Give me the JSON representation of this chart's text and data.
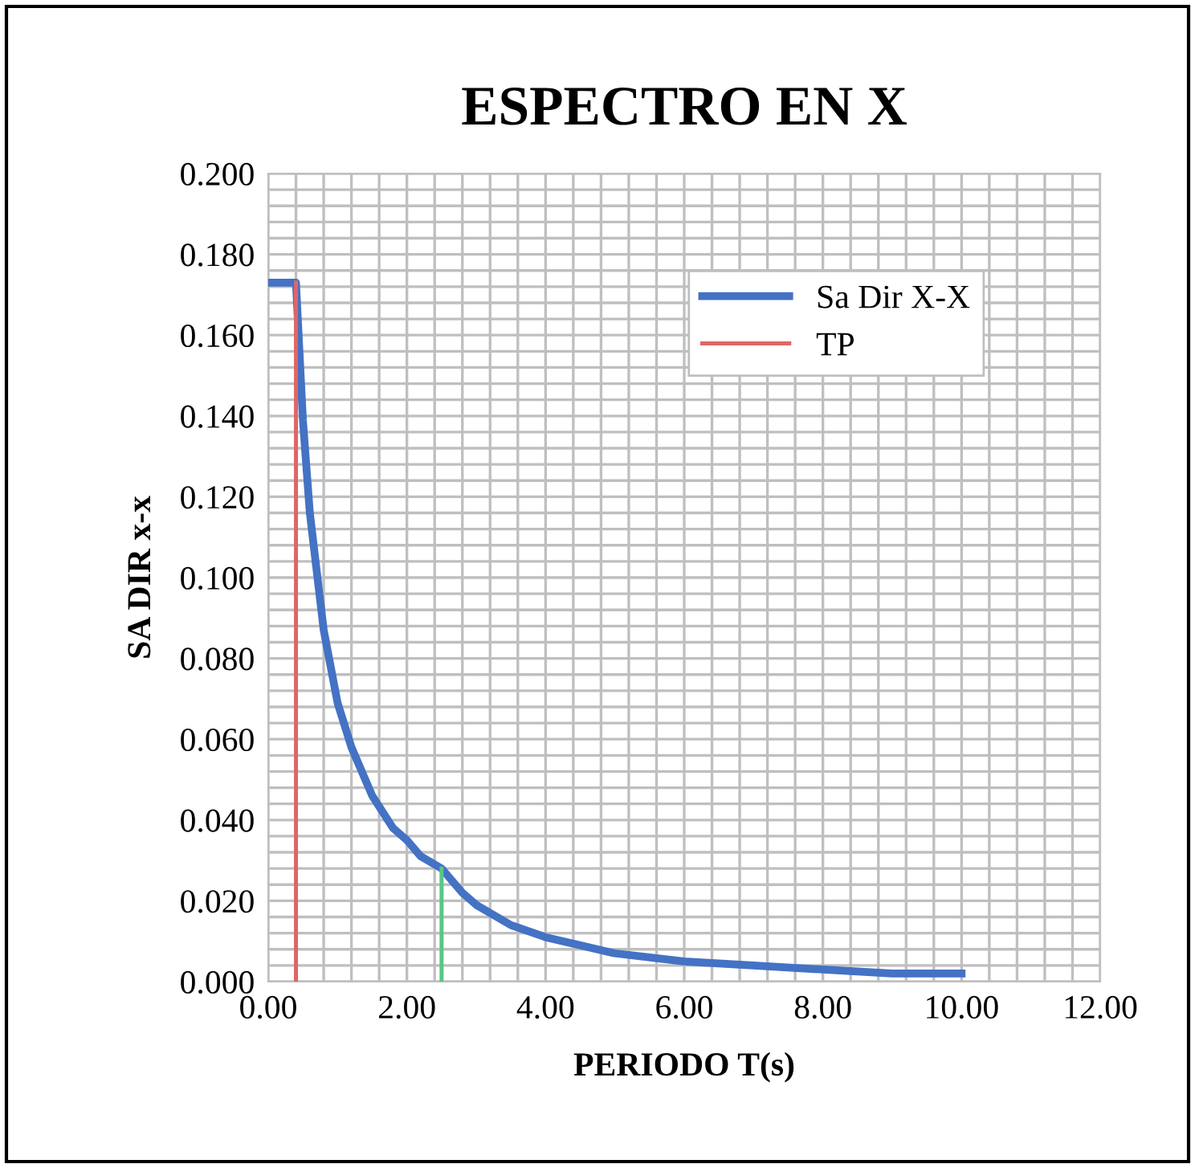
{
  "chart_data": {
    "type": "line",
    "title": "ESPECTRO EN X",
    "xlabel": "PERIODO T(s)",
    "ylabel": "SA DIR x-x",
    "series": [
      {
        "name": "Sa Dir X-X",
        "color": "#4472c4",
        "x": [
          0,
          0.2,
          0.4,
          0.5,
          0.6,
          0.8,
          1.0,
          1.2,
          1.5,
          1.8,
          2.0,
          2.2,
          2.5,
          2.8,
          3.0,
          3.5,
          4.0,
          4.5,
          5.0,
          6.0,
          7.0,
          8.0,
          9.0,
          10.0
        ],
        "values": [
          0.173,
          0.173,
          0.173,
          0.139,
          0.116,
          0.087,
          0.069,
          0.058,
          0.046,
          0.038,
          0.035,
          0.031,
          0.028,
          0.022,
          0.019,
          0.014,
          0.011,
          0.009,
          0.007,
          0.005,
          0.004,
          0.003,
          0.002,
          0.002
        ]
      },
      {
        "name": "TP",
        "color": "#e06666",
        "x": [
          0.4,
          0.4
        ],
        "values": [
          0,
          0.173
        ]
      },
      {
        "color": "#57c785",
        "x": [
          2.5,
          2.5
        ],
        "values": [
          0,
          0.028
        ]
      }
    ],
    "xlim": [
      0,
      12
    ],
    "xticks": [
      {
        "value": 0,
        "label": "0.00"
      },
      {
        "value": 2,
        "label": "2.00"
      },
      {
        "value": 4,
        "label": "4.00"
      },
      {
        "value": 6,
        "label": "6.00"
      },
      {
        "value": 8,
        "label": "8.00"
      },
      {
        "value": 10,
        "label": "10.00"
      },
      {
        "value": 12,
        "label": "12.00"
      }
    ],
    "ylim": [
      0,
      0.2
    ],
    "yticks": [
      {
        "value": 0,
        "label": "0.000"
      },
      {
        "value": 0.02,
        "label": "0.020"
      },
      {
        "value": 0.04,
        "label": "0.040"
      },
      {
        "value": 0.06,
        "label": "0.060"
      },
      {
        "value": 0.08,
        "label": "0.080"
      },
      {
        "value": 0.1,
        "label": "0.100"
      },
      {
        "value": 0.12,
        "label": "0.120"
      },
      {
        "value": 0.14,
        "label": "0.140"
      },
      {
        "value": 0.16,
        "label": "0.160"
      },
      {
        "value": 0.18,
        "label": "0.180"
      },
      {
        "value": 0.2,
        "label": "0.200"
      }
    ],
    "grid": true,
    "legend": "top right",
    "marker": "none",
    "line_style": "solid"
  }
}
